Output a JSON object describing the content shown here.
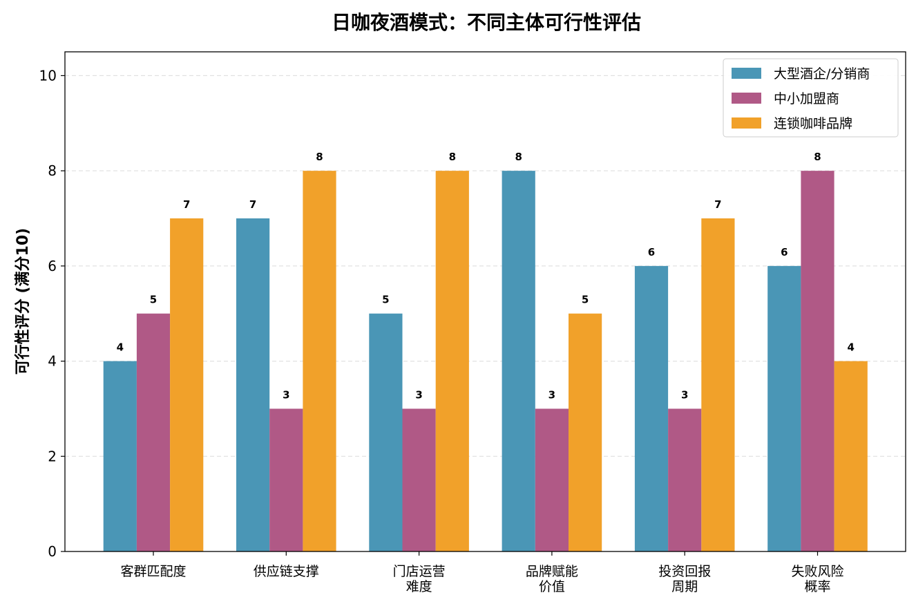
{
  "chart_data": {
    "type": "bar",
    "title": "日咖夜酒模式：不同主体可行性评估",
    "xlabel": "",
    "ylabel": "可行性评分 (满分10)",
    "ylim": [
      0,
      10.5
    ],
    "yticks": [
      0,
      2,
      4,
      6,
      8,
      10
    ],
    "grid": "y-dashed",
    "legend_position": "top-right",
    "categories": [
      [
        "客群匹配度"
      ],
      [
        "供应链支撑"
      ],
      [
        "门店运营",
        "难度"
      ],
      [
        "品牌赋能",
        "价值"
      ],
      [
        "投资回报",
        "周期"
      ],
      [
        "失败风险",
        "概率"
      ]
    ],
    "series": [
      {
        "name": "大型酒企/分销商",
        "color": "#4a96b6",
        "values": [
          4,
          7,
          5,
          8,
          6,
          6
        ]
      },
      {
        "name": "中小加盟商",
        "color": "#b05986",
        "values": [
          5,
          3,
          3,
          3,
          3,
          8
        ]
      },
      {
        "name": "连锁咖啡品牌",
        "color": "#f1a12a",
        "values": [
          7,
          8,
          8,
          5,
          7,
          4
        ]
      }
    ]
  }
}
